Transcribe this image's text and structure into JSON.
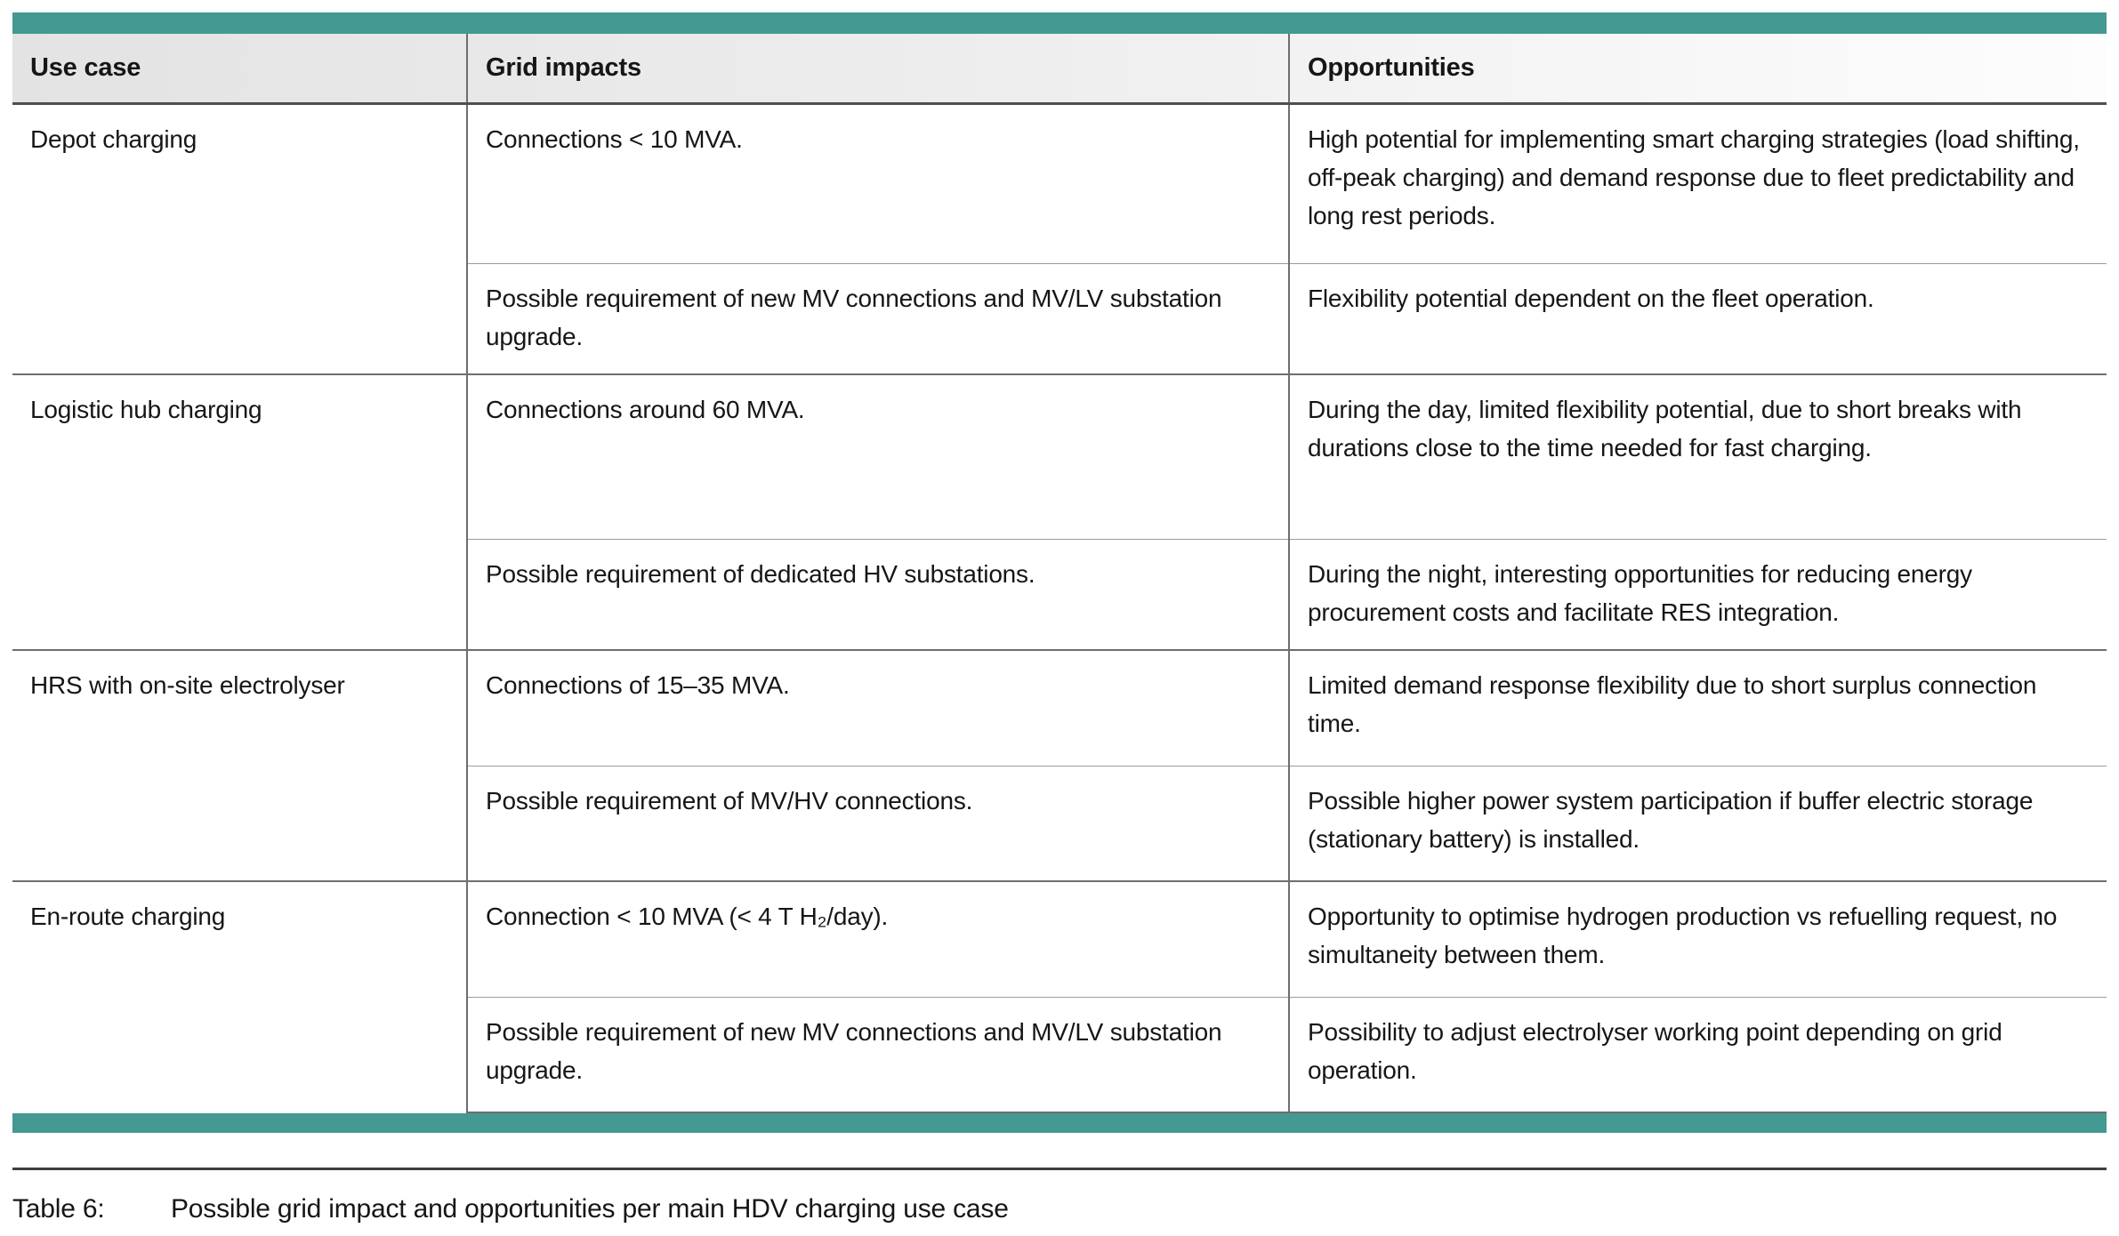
{
  "colors": {
    "accent": "#449992",
    "header_bg_left": "#e3e3e3",
    "header_bg_right": "#fdfdfd",
    "rule_dark": "#3f3f3f",
    "grid_line": "#6e6e6e"
  },
  "table": {
    "columns": [
      "Use case",
      "Grid impacts",
      "Opportunities"
    ],
    "groups": [
      {
        "use_case": "Depot charging",
        "rows": [
          {
            "grid_impact": "Connections < 10 MVA.",
            "opportunity": "High potential for implementing smart charging strategies (load shifting, off-peak charging) and demand response due to fleet predictability and long rest periods."
          },
          {
            "grid_impact": "Possible requirement of new MV connections and MV/LV substation upgrade.",
            "opportunity": "Flexibility potential dependent on the fleet operation."
          }
        ]
      },
      {
        "use_case": "Logistic hub charging",
        "rows": [
          {
            "grid_impact": "Connections around 60 MVA.",
            "opportunity": "During the day, limited flexibility potential, due to short breaks with durations close to the time needed for fast charging."
          },
          {
            "grid_impact": "Possible requirement of dedicated HV substations.",
            "opportunity": "During the night, interesting opportunities for reducing energy procurement costs and facilitate RES integration."
          }
        ]
      },
      {
        "use_case": "HRS with on-site electrolyser",
        "rows": [
          {
            "grid_impact": "Connections of 15–35 MVA.",
            "opportunity": "Limited demand response flexibility due to short surplus connection time."
          },
          {
            "grid_impact": "Possible requirement of MV/HV connections.",
            "opportunity": "Possible higher power system participation if buffer electric storage (stationary battery) is installed."
          }
        ]
      },
      {
        "use_case": "En-route charging",
        "rows": [
          {
            "grid_impact": "Connection < 10 MVA (< 4 T H₂/day).",
            "opportunity": "Opportunity to optimise hydrogen production vs refuelling request, no simultaneity between them."
          },
          {
            "grid_impact": "Possible requirement of new MV connections and MV/LV substation upgrade.",
            "opportunity": "Possibility to adjust electrolyser working point depending on grid operation."
          }
        ]
      }
    ]
  },
  "caption": {
    "label": "Table 6:",
    "text": "Possible grid impact and opportunities per main HDV charging use case"
  }
}
